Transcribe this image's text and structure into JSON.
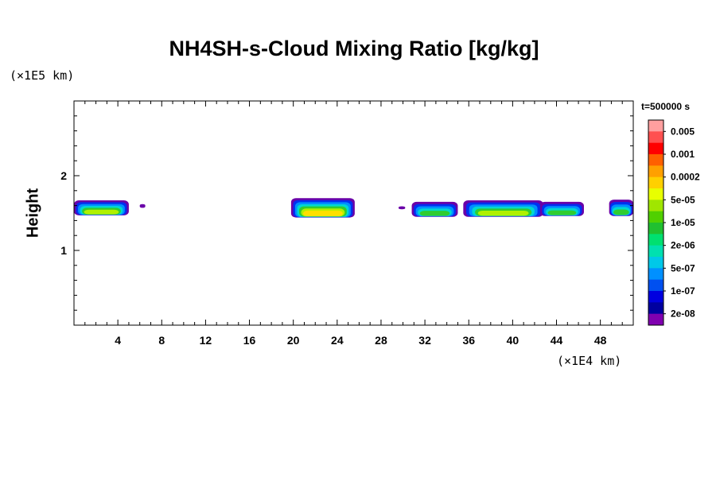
{
  "chart_data": {
    "type": "heatmap",
    "title": "NH4SH-s-Cloud Mixing Ratio [kg/kg]",
    "ylabel": "Height",
    "xlabel": "",
    "x_unit": "(×1E4 km)",
    "y_unit": "(×1E5 km)",
    "time_label": "t=500000 s",
    "xlim": [
      0,
      51
    ],
    "ylim": [
      0,
      3
    ],
    "x_ticks": [
      4,
      8,
      12,
      16,
      20,
      24,
      28,
      32,
      36,
      40,
      44,
      48
    ],
    "y_ticks": [
      1,
      2
    ],
    "colorbar": {
      "labels": [
        "0.005",
        "0.001",
        "0.0002",
        "5e-05",
        "1e-05",
        "2e-06",
        "5e-07",
        "1e-07",
        "2e-08"
      ],
      "colors_top_to_bottom": [
        "#ff9f9f",
        "#ff5050",
        "#ff0000",
        "#ff6000",
        "#ffa000",
        "#ffd000",
        "#e8ff00",
        "#a0e600",
        "#50d000",
        "#20c030",
        "#00e070",
        "#00e0b0",
        "#00c8e8",
        "#0090ff",
        "#0050f0",
        "#0000e0",
        "#0000a0",
        "#8000b0"
      ]
    },
    "cloud_features": [
      {
        "x_start": 0,
        "x_end": 5.0,
        "height_bottom": 1.47,
        "height_top": 1.67,
        "peak_level": "5e-05"
      },
      {
        "x_start": 6.0,
        "x_end": 6.5,
        "height_bottom": 1.57,
        "height_top": 1.62,
        "peak_level": "2e-08"
      },
      {
        "x_start": 19.8,
        "x_end": 25.6,
        "height_bottom": 1.44,
        "height_top": 1.7,
        "peak_level": "0.0002"
      },
      {
        "x_start": 29.6,
        "x_end": 30.2,
        "height_bottom": 1.55,
        "height_top": 1.59,
        "peak_level": "2e-08"
      },
      {
        "x_start": 30.8,
        "x_end": 35.0,
        "height_bottom": 1.45,
        "height_top": 1.65,
        "peak_level": "1e-05"
      },
      {
        "x_start": 35.5,
        "x_end": 42.8,
        "height_bottom": 1.45,
        "height_top": 1.67,
        "peak_level": "5e-05"
      },
      {
        "x_start": 42.5,
        "x_end": 46.5,
        "height_bottom": 1.46,
        "height_top": 1.65,
        "peak_level": "1e-05"
      },
      {
        "x_start": 48.8,
        "x_end": 51,
        "height_bottom": 1.46,
        "height_top": 1.68,
        "peak_level": "1e-05"
      }
    ]
  }
}
